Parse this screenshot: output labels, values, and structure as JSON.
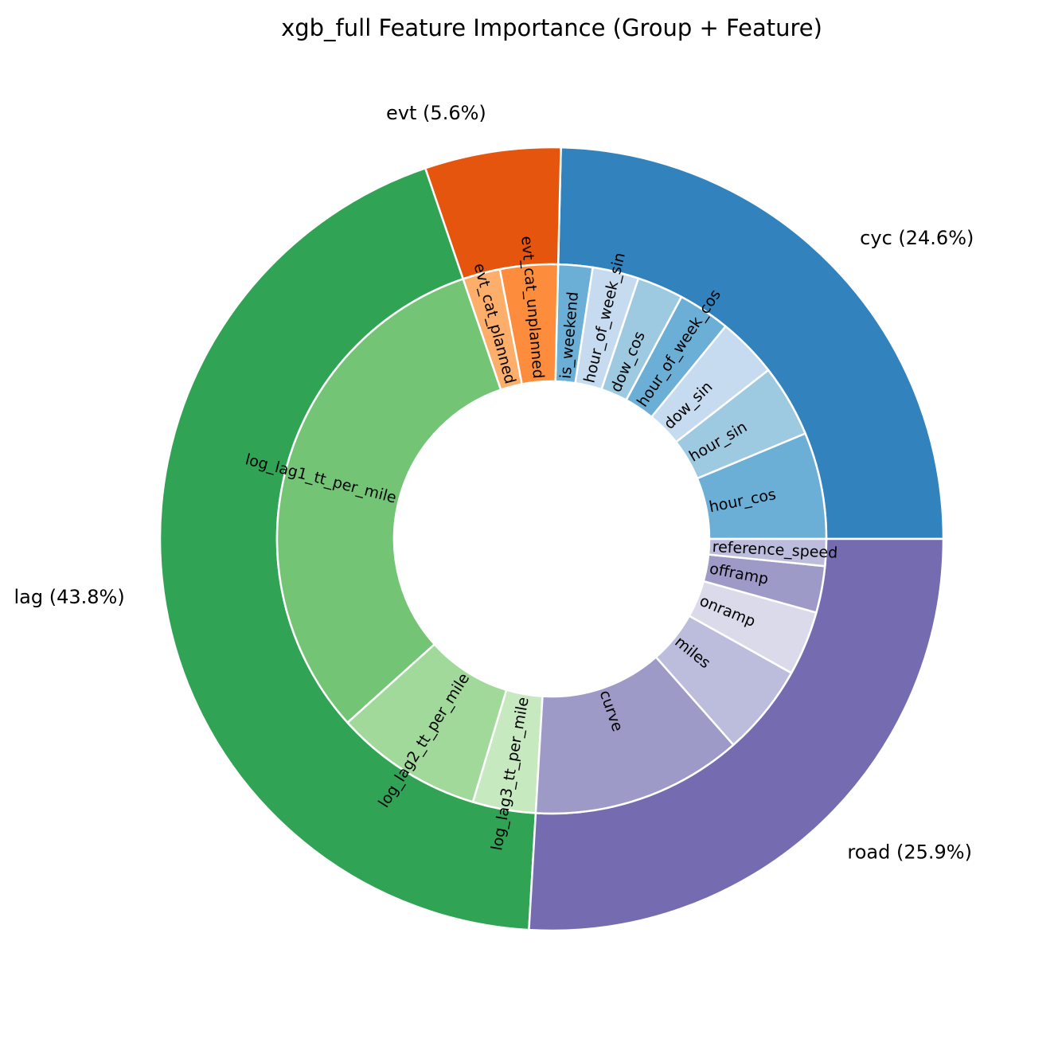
{
  "chart_data": {
    "type": "nested-pie",
    "title": "xgb_full Feature Importance (Group + Feature)",
    "groups": [
      {
        "name": "cyc",
        "label": "cyc (24.6%)",
        "percent": 24.6,
        "color": "#3182bd",
        "features": [
          {
            "name": "hour_cos",
            "value": 5.3,
            "color": "#6baed6"
          },
          {
            "name": "hour_sin",
            "value": 3.6,
            "color": "#9ecae1"
          },
          {
            "name": "dow_sin",
            "value": 3.0,
            "color": "#c6dbef"
          },
          {
            "name": "hour_of_week_cos",
            "value": 2.6,
            "color": "#6baed6"
          },
          {
            "name": "dow_cos",
            "value": 2.3,
            "color": "#9ecae1"
          },
          {
            "name": "hour_of_week_sin",
            "value": 2.3,
            "color": "#c6dbef"
          },
          {
            "name": "is_weekend",
            "value": 1.7,
            "color": "#6baed6"
          }
        ]
      },
      {
        "name": "evt",
        "label": "evt (5.6%)",
        "percent": 5.6,
        "color": "#e6550d",
        "features": [
          {
            "name": "evt_cat_unplanned",
            "value": 3.4,
            "color": "#fd8d3c"
          },
          {
            "name": "evt_cat_planned",
            "value": 2.2,
            "color": "#fdae6b"
          }
        ]
      },
      {
        "name": "lag",
        "label": "lag (43.8%)",
        "percent": 43.8,
        "color": "#31a354",
        "features": [
          {
            "name": "log_lag1_tt_per_mile",
            "value": 31.4,
            "color": "#74c476"
          },
          {
            "name": "log_lag2_tt_per_mile",
            "value": 8.7,
            "color": "#a1d99b"
          },
          {
            "name": "log_lag3_tt_per_mile",
            "value": 3.7,
            "color": "#c7e9c0"
          }
        ]
      },
      {
        "name": "road",
        "label": "road (25.9%)",
        "percent": 25.9,
        "color": "#756bb1",
        "features": [
          {
            "name": "curve",
            "value": 11.8,
            "color": "#9e9ac8"
          },
          {
            "name": "miles",
            "value": 5.1,
            "color": "#bcbddc"
          },
          {
            "name": "onramp",
            "value": 3.6,
            "color": "#dadaeb"
          },
          {
            "name": "offramp",
            "value": 2.6,
            "color": "#9e9ac8"
          },
          {
            "name": "reference_speed",
            "value": 1.5,
            "color": "#bcbddc"
          }
        ]
      }
    ],
    "start_angle_deg": 0,
    "direction": "counterclockwise",
    "edge_color": "#ffffff"
  }
}
